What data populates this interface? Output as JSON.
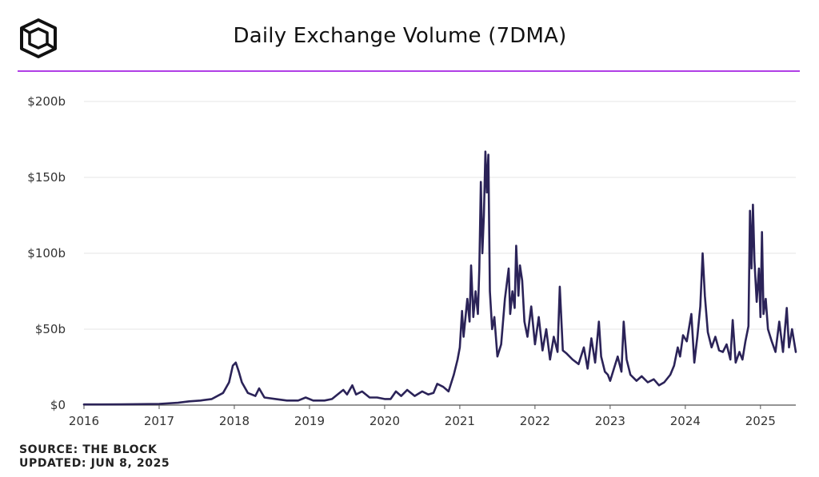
{
  "header": {
    "title": "Daily Exchange Volume (7DMA)",
    "logo_icon": "the-block-cube-logo-icon",
    "accent_color": "#b03fe6"
  },
  "footer": {
    "source": "SOURCE: THE BLOCK",
    "updated": "UPDATED: JUN 8, 2025"
  },
  "chart_data": {
    "type": "line",
    "title": "Daily Exchange Volume (7DMA)",
    "xlabel": "",
    "ylabel": "",
    "x_ticks": [
      "2016",
      "2017",
      "2018",
      "2019",
      "2020",
      "2021",
      "2022",
      "2023",
      "2024",
      "2025"
    ],
    "y_ticks": [
      "$0",
      "$50b",
      "$100b",
      "$150b",
      "$200b"
    ],
    "y_tick_values": [
      0,
      50,
      100,
      150,
      200
    ],
    "xlim": [
      2016.0,
      2025.47
    ],
    "ylim": [
      0,
      200
    ],
    "grid": true,
    "line_color": "#2b2358",
    "series": [
      {
        "name": "",
        "unit": "billion USD",
        "points": [
          [
            2016.0,
            0.4
          ],
          [
            2016.5,
            0.5
          ],
          [
            2017.0,
            0.8
          ],
          [
            2017.25,
            1.5
          ],
          [
            2017.4,
            2.5
          ],
          [
            2017.55,
            3
          ],
          [
            2017.7,
            4
          ],
          [
            2017.85,
            8
          ],
          [
            2017.93,
            15
          ],
          [
            2017.98,
            26
          ],
          [
            2018.02,
            28
          ],
          [
            2018.06,
            22
          ],
          [
            2018.1,
            15
          ],
          [
            2018.18,
            8
          ],
          [
            2018.28,
            6
          ],
          [
            2018.33,
            11
          ],
          [
            2018.4,
            5
          ],
          [
            2018.55,
            4
          ],
          [
            2018.7,
            3
          ],
          [
            2018.85,
            3
          ],
          [
            2018.95,
            5
          ],
          [
            2019.05,
            3
          ],
          [
            2019.2,
            3
          ],
          [
            2019.3,
            4
          ],
          [
            2019.4,
            8
          ],
          [
            2019.45,
            10
          ],
          [
            2019.5,
            7
          ],
          [
            2019.57,
            13
          ],
          [
            2019.62,
            7
          ],
          [
            2019.7,
            9
          ],
          [
            2019.8,
            5
          ],
          [
            2019.9,
            5
          ],
          [
            2020.0,
            4
          ],
          [
            2020.08,
            4
          ],
          [
            2020.15,
            9
          ],
          [
            2020.22,
            6
          ],
          [
            2020.3,
            10
          ],
          [
            2020.4,
            6
          ],
          [
            2020.5,
            9
          ],
          [
            2020.58,
            7
          ],
          [
            2020.65,
            8
          ],
          [
            2020.7,
            14
          ],
          [
            2020.78,
            12
          ],
          [
            2020.85,
            9
          ],
          [
            2020.92,
            20
          ],
          [
            2020.97,
            30
          ],
          [
            2021.0,
            38
          ],
          [
            2021.03,
            62
          ],
          [
            2021.05,
            45
          ],
          [
            2021.1,
            70
          ],
          [
            2021.13,
            55
          ],
          [
            2021.15,
            92
          ],
          [
            2021.18,
            58
          ],
          [
            2021.21,
            75
          ],
          [
            2021.24,
            60
          ],
          [
            2021.26,
            90
          ],
          [
            2021.28,
            147
          ],
          [
            2021.3,
            100
          ],
          [
            2021.32,
            125
          ],
          [
            2021.34,
            167
          ],
          [
            2021.36,
            140
          ],
          [
            2021.38,
            165
          ],
          [
            2021.4,
            75
          ],
          [
            2021.43,
            50
          ],
          [
            2021.46,
            58
          ],
          [
            2021.5,
            32
          ],
          [
            2021.55,
            40
          ],
          [
            2021.6,
            70
          ],
          [
            2021.65,
            90
          ],
          [
            2021.67,
            60
          ],
          [
            2021.7,
            75
          ],
          [
            2021.73,
            64
          ],
          [
            2021.75,
            105
          ],
          [
            2021.78,
            72
          ],
          [
            2021.8,
            92
          ],
          [
            2021.83,
            82
          ],
          [
            2021.86,
            55
          ],
          [
            2021.9,
            45
          ],
          [
            2021.95,
            65
          ],
          [
            2022.0,
            40
          ],
          [
            2022.05,
            58
          ],
          [
            2022.1,
            36
          ],
          [
            2022.15,
            50
          ],
          [
            2022.2,
            30
          ],
          [
            2022.25,
            45
          ],
          [
            2022.3,
            35
          ],
          [
            2022.33,
            78
          ],
          [
            2022.37,
            36
          ],
          [
            2022.42,
            34
          ],
          [
            2022.5,
            30
          ],
          [
            2022.58,
            27
          ],
          [
            2022.65,
            38
          ],
          [
            2022.7,
            24
          ],
          [
            2022.75,
            44
          ],
          [
            2022.8,
            28
          ],
          [
            2022.85,
            55
          ],
          [
            2022.88,
            32
          ],
          [
            2022.93,
            22
          ],
          [
            2022.97,
            20
          ],
          [
            2023.0,
            16
          ],
          [
            2023.05,
            24
          ],
          [
            2023.1,
            32
          ],
          [
            2023.15,
            22
          ],
          [
            2023.18,
            55
          ],
          [
            2023.22,
            30
          ],
          [
            2023.27,
            20
          ],
          [
            2023.35,
            16
          ],
          [
            2023.42,
            19
          ],
          [
            2023.5,
            15
          ],
          [
            2023.58,
            17
          ],
          [
            2023.65,
            13
          ],
          [
            2023.72,
            15
          ],
          [
            2023.8,
            20
          ],
          [
            2023.85,
            26
          ],
          [
            2023.9,
            38
          ],
          [
            2023.93,
            32
          ],
          [
            2023.97,
            46
          ],
          [
            2024.02,
            42
          ],
          [
            2024.08,
            60
          ],
          [
            2024.12,
            28
          ],
          [
            2024.16,
            45
          ],
          [
            2024.2,
            65
          ],
          [
            2024.23,
            100
          ],
          [
            2024.26,
            72
          ],
          [
            2024.3,
            48
          ],
          [
            2024.35,
            38
          ],
          [
            2024.4,
            45
          ],
          [
            2024.45,
            36
          ],
          [
            2024.5,
            35
          ],
          [
            2024.55,
            40
          ],
          [
            2024.6,
            30
          ],
          [
            2024.63,
            56
          ],
          [
            2024.67,
            28
          ],
          [
            2024.72,
            35
          ],
          [
            2024.76,
            30
          ],
          [
            2024.8,
            42
          ],
          [
            2024.84,
            52
          ],
          [
            2024.86,
            128
          ],
          [
            2024.88,
            90
          ],
          [
            2024.9,
            132
          ],
          [
            2024.92,
            95
          ],
          [
            2024.95,
            68
          ],
          [
            2024.98,
            90
          ],
          [
            2025.0,
            58
          ],
          [
            2025.02,
            114
          ],
          [
            2025.04,
            60
          ],
          [
            2025.07,
            70
          ],
          [
            2025.1,
            50
          ],
          [
            2025.15,
            42
          ],
          [
            2025.2,
            35
          ],
          [
            2025.25,
            55
          ],
          [
            2025.3,
            35
          ],
          [
            2025.35,
            64
          ],
          [
            2025.38,
            38
          ],
          [
            2025.42,
            50
          ],
          [
            2025.47,
            35
          ]
        ]
      }
    ]
  }
}
